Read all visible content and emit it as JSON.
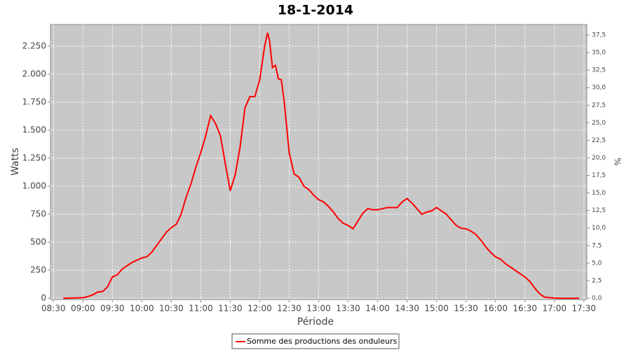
{
  "chart_data": {
    "type": "line",
    "title": "18-1-2014",
    "xlabel": "Période",
    "ylabel": "Watts",
    "y2label": "%",
    "x": [
      "08:40",
      "08:50",
      "09:00",
      "09:05",
      "09:10",
      "09:15",
      "09:20",
      "09:25",
      "09:30",
      "09:35",
      "09:40",
      "09:45",
      "09:50",
      "09:55",
      "10:00",
      "10:05",
      "10:10",
      "10:15",
      "10:20",
      "10:25",
      "10:30",
      "10:35",
      "10:40",
      "10:45",
      "10:50",
      "10:55",
      "11:00",
      "11:05",
      "11:10",
      "11:15",
      "11:20",
      "11:25",
      "11:30",
      "11:35",
      "11:40",
      "11:45",
      "11:50",
      "11:55",
      "12:00",
      "12:05",
      "12:08",
      "12:10",
      "12:13",
      "12:16",
      "12:19",
      "12:22",
      "12:25",
      "12:30",
      "12:35",
      "12:40",
      "12:45",
      "12:50",
      "12:55",
      "13:00",
      "13:05",
      "13:10",
      "13:15",
      "13:20",
      "13:25",
      "13:30",
      "13:35",
      "13:40",
      "13:45",
      "13:50",
      "13:55",
      "14:00",
      "14:05",
      "14:10",
      "14:15",
      "14:20",
      "14:25",
      "14:30",
      "14:35",
      "14:40",
      "14:45",
      "14:50",
      "14:55",
      "15:00",
      "15:05",
      "15:10",
      "15:15",
      "15:20",
      "15:25",
      "15:30",
      "15:35",
      "15:40",
      "15:45",
      "15:50",
      "15:55",
      "16:00",
      "16:05",
      "16:10",
      "16:15",
      "16:20",
      "16:25",
      "16:30",
      "16:35",
      "16:40",
      "16:45",
      "16:50",
      "16:55",
      "17:00",
      "17:05",
      "17:15",
      "17:25"
    ],
    "series": [
      {
        "name": "Somme des productions des onduleurs",
        "color": "#ff0000",
        "values": [
          0,
          2,
          5,
          15,
          30,
          55,
          60,
          100,
          190,
          210,
          260,
          290,
          320,
          340,
          360,
          370,
          410,
          470,
          530,
          590,
          630,
          660,
          750,
          900,
          1020,
          1170,
          1300,
          1450,
          1630,
          1560,
          1450,
          1200,
          960,
          1100,
          1350,
          1700,
          1800,
          1800,
          1950,
          2250,
          2370,
          2300,
          2060,
          2080,
          1960,
          1950,
          1750,
          1300,
          1110,
          1080,
          1000,
          970,
          920,
          880,
          860,
          820,
          770,
          710,
          670,
          650,
          620,
          690,
          760,
          800,
          790,
          790,
          800,
          810,
          810,
          810,
          860,
          890,
          850,
          800,
          750,
          770,
          780,
          810,
          780,
          750,
          700,
          650,
          625,
          620,
          600,
          570,
          520,
          460,
          410,
          370,
          350,
          310,
          280,
          250,
          220,
          190,
          150,
          90,
          40,
          10,
          5,
          2,
          0,
          0,
          0
        ]
      }
    ],
    "xlim": [
      "08:27",
      "17:33"
    ],
    "xticks": [
      "08:30",
      "09:00",
      "09:30",
      "10:00",
      "10:30",
      "11:00",
      "11:30",
      "12:00",
      "12:30",
      "13:00",
      "13:30",
      "14:00",
      "14:30",
      "15:00",
      "15:30",
      "16:00",
      "16:30",
      "17:00",
      "17:30"
    ],
    "ylim": [
      -12,
      2444
    ],
    "yticks": [
      0,
      250,
      500,
      750,
      {
        "value": 1000,
        "label": "1.000"
      },
      {
        "value": 1250,
        "label": "1.250"
      },
      {
        "value": 1500,
        "label": "1.500"
      },
      {
        "value": 1750,
        "label": "1.750"
      },
      {
        "value": 2000,
        "label": "2.000"
      },
      {
        "value": 2250,
        "label": "2.250"
      }
    ],
    "y2lim": [
      -0.2,
      39.0
    ],
    "y2ticks": [
      {
        "value": 0,
        "label": "0,0"
      },
      {
        "value": 2.5,
        "label": "2,5"
      },
      {
        "value": 5,
        "label": "5,0"
      },
      {
        "value": 7.5,
        "label": "7,5"
      },
      {
        "value": 10,
        "label": "10,0"
      },
      {
        "value": 12.5,
        "label": "12,5"
      },
      {
        "value": 15,
        "label": "15,0"
      },
      {
        "value": 17.5,
        "label": "17,5"
      },
      {
        "value": 20,
        "label": "20,0"
      },
      {
        "value": 22.5,
        "label": "22,5"
      },
      {
        "value": 25,
        "label": "25,0"
      },
      {
        "value": 27.5,
        "label": "27,5"
      },
      {
        "value": 30,
        "label": "30,0"
      },
      {
        "value": 32.5,
        "label": "32,5"
      },
      {
        "value": 35,
        "label": "35,0"
      },
      {
        "value": 37.5,
        "label": "37,5"
      }
    ],
    "grid": true,
    "legend": "bottom"
  }
}
